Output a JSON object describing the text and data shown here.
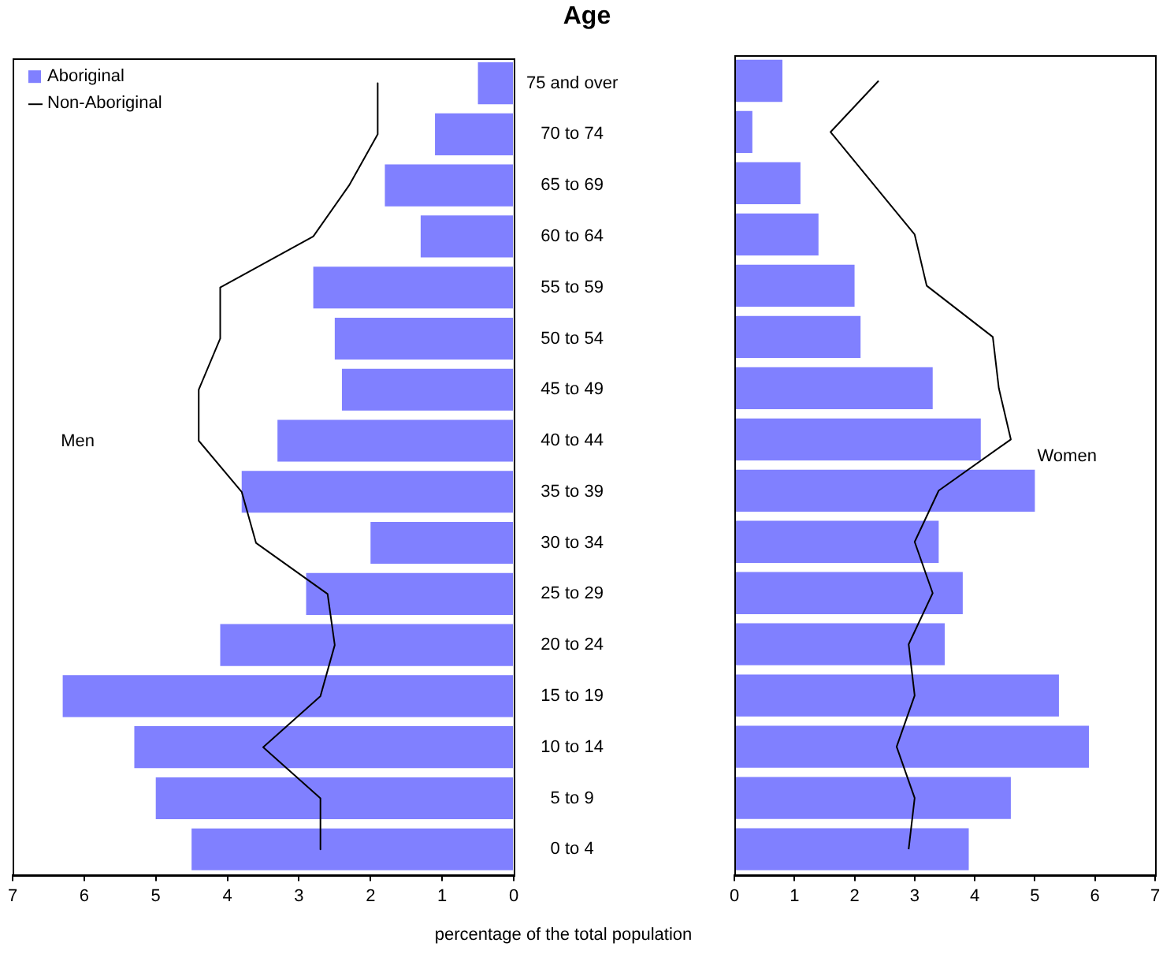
{
  "chart_data": [
    {
      "type": "bar",
      "orientation": "horizontal",
      "title": "Age",
      "xlabel": "percentage of the total population",
      "legend": "top left",
      "grid": false,
      "marker": "none",
      "line_style": "solid",
      "categories": [
        "75 and over",
        "70 to 74",
        "65 to 69",
        "60 to 64",
        "55 to 59",
        "50 to 54",
        "45 to 49",
        "40 to 44",
        "35 to 39",
        "30 to 34",
        "25 to 29",
        "20 to 24",
        "15 to 19",
        "10 to 14",
        "5 to 9",
        "0 to 4"
      ],
      "xlim": [
        7,
        0
      ],
      "xticks": [
        7,
        6,
        5,
        4,
        3,
        2,
        1,
        0
      ],
      "annotations": [
        "Men"
      ],
      "series": [
        {
          "name": "Aboriginal",
          "color": "#8080ff",
          "values": [
            0.5,
            1.1,
            1.8,
            1.3,
            2.8,
            2.5,
            2.4,
            3.3,
            3.8,
            2.0,
            2.9,
            4.1,
            6.3,
            5.3,
            5.0,
            4.5
          ]
        },
        {
          "name": "Non-Aboriginal",
          "type": "line",
          "color": "#000000",
          "values": [
            1.9,
            1.9,
            2.3,
            2.8,
            4.1,
            4.1,
            4.4,
            4.4,
            3.8,
            3.6,
            2.6,
            2.5,
            2.7,
            3.5,
            2.7,
            2.7
          ]
        }
      ]
    },
    {
      "type": "bar",
      "orientation": "horizontal",
      "legend": false,
      "grid": false,
      "marker": "none",
      "line_style": "solid",
      "categories": [
        null,
        null,
        null,
        null,
        null,
        null,
        null,
        null,
        null,
        null,
        null,
        null,
        null,
        null,
        null,
        null
      ],
      "xlim": [
        0,
        7
      ],
      "xticks": [
        0,
        1,
        2,
        3,
        4,
        5,
        6,
        7
      ],
      "annotations": [
        "Women"
      ],
      "series": [
        {
          "color": "#8080ff",
          "values": [
            0.8,
            0.3,
            1.1,
            1.4,
            2.0,
            2.1,
            3.3,
            4.1,
            5.0,
            3.4,
            3.8,
            3.5,
            5.4,
            5.9,
            4.6,
            3.9
          ]
        },
        {
          "type": "line",
          "color": "#000000",
          "values": [
            2.4,
            1.6,
            2.3,
            3.0,
            3.2,
            4.3,
            4.4,
            4.6,
            3.4,
            3.0,
            3.3,
            2.9,
            3.0,
            2.7,
            3.0,
            2.9
          ]
        }
      ]
    }
  ]
}
